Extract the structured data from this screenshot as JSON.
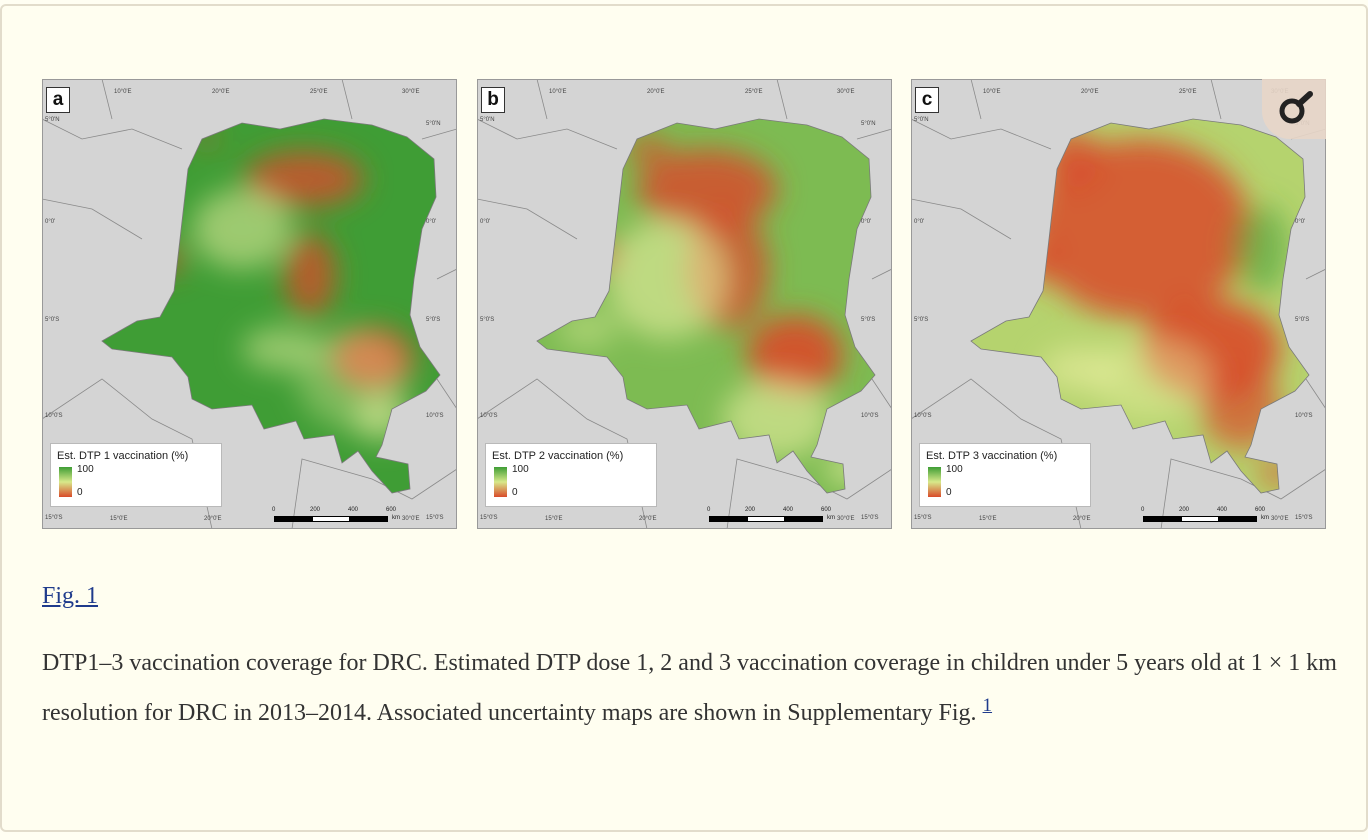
{
  "figure": {
    "panels": [
      {
        "letter": "a",
        "legend_title": "Est. DTP 1 vaccination (%)",
        "legend_max": "100",
        "legend_min": "0",
        "coverage_level": "high"
      },
      {
        "letter": "b",
        "legend_title": "Est. DTP 2 vaccination (%)",
        "legend_max": "100",
        "legend_min": "0",
        "coverage_level": "medium"
      },
      {
        "letter": "c",
        "legend_title": "Est. DTP 3 vaccination (%)",
        "legend_max": "100",
        "legend_min": "0",
        "coverage_level": "low"
      }
    ],
    "graticule": {
      "top": [
        "10°0'E",
        "20°0'E",
        "25°0'E",
        "30°0'E"
      ],
      "bottom": [
        "15°0'E",
        "20°0'E",
        "30°0'E"
      ],
      "left": [
        "5°0'N",
        "0°0'",
        "5°0'S",
        "10°0'S",
        "15°0'S"
      ],
      "right": [
        "5°0'N",
        "0°0'",
        "5°0'S",
        "10°0'S",
        "15°0'S"
      ]
    },
    "scale_bar": {
      "ticks": [
        "0",
        "200",
        "400",
        "600"
      ],
      "unit": "km"
    },
    "colors": {
      "high": "#3f9d35",
      "mid": "#e9efa0",
      "low": "#d94b2a",
      "land": "#d4d4d4"
    },
    "zoom_icon": "magnifier-icon"
  },
  "fig_link": "Fig. 1",
  "caption": {
    "text": "DTP1–3 vaccination coverage for DRC. Estimated DTP dose 1, 2 and 3 vaccination coverage in children under 5 years old at 1 × 1 km resolution for DRC in 2013–2014. Associated uncertainty maps are shown in Supplementary Fig. ",
    "sup_link": "1"
  }
}
